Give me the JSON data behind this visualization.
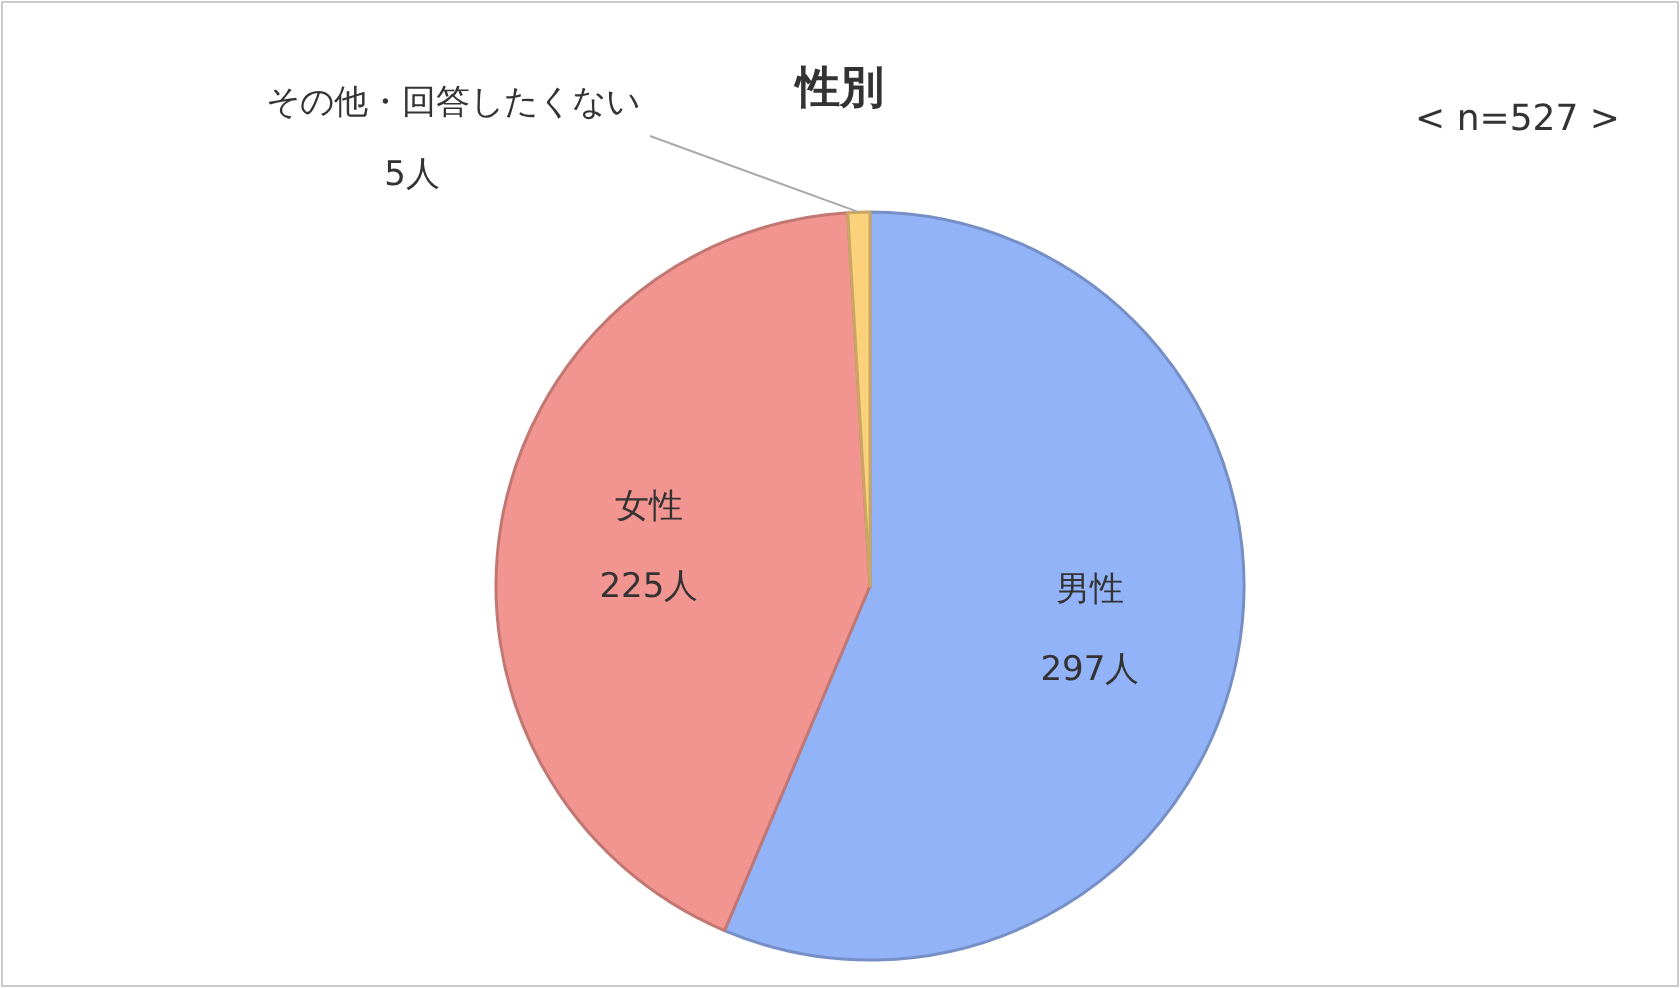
{
  "chart_data": {
    "type": "pie",
    "title": "性別",
    "categories": [
      "男性",
      "女性",
      "その他・回答したくない"
    ],
    "values": [
      297,
      225,
      5
    ],
    "colors": [
      "#93b3f8",
      "#f29590",
      "#fbd17c"
    ],
    "value_labels": [
      "297人",
      "225人",
      "5人"
    ],
    "annotations": [
      "< n=527 >"
    ]
  }
}
